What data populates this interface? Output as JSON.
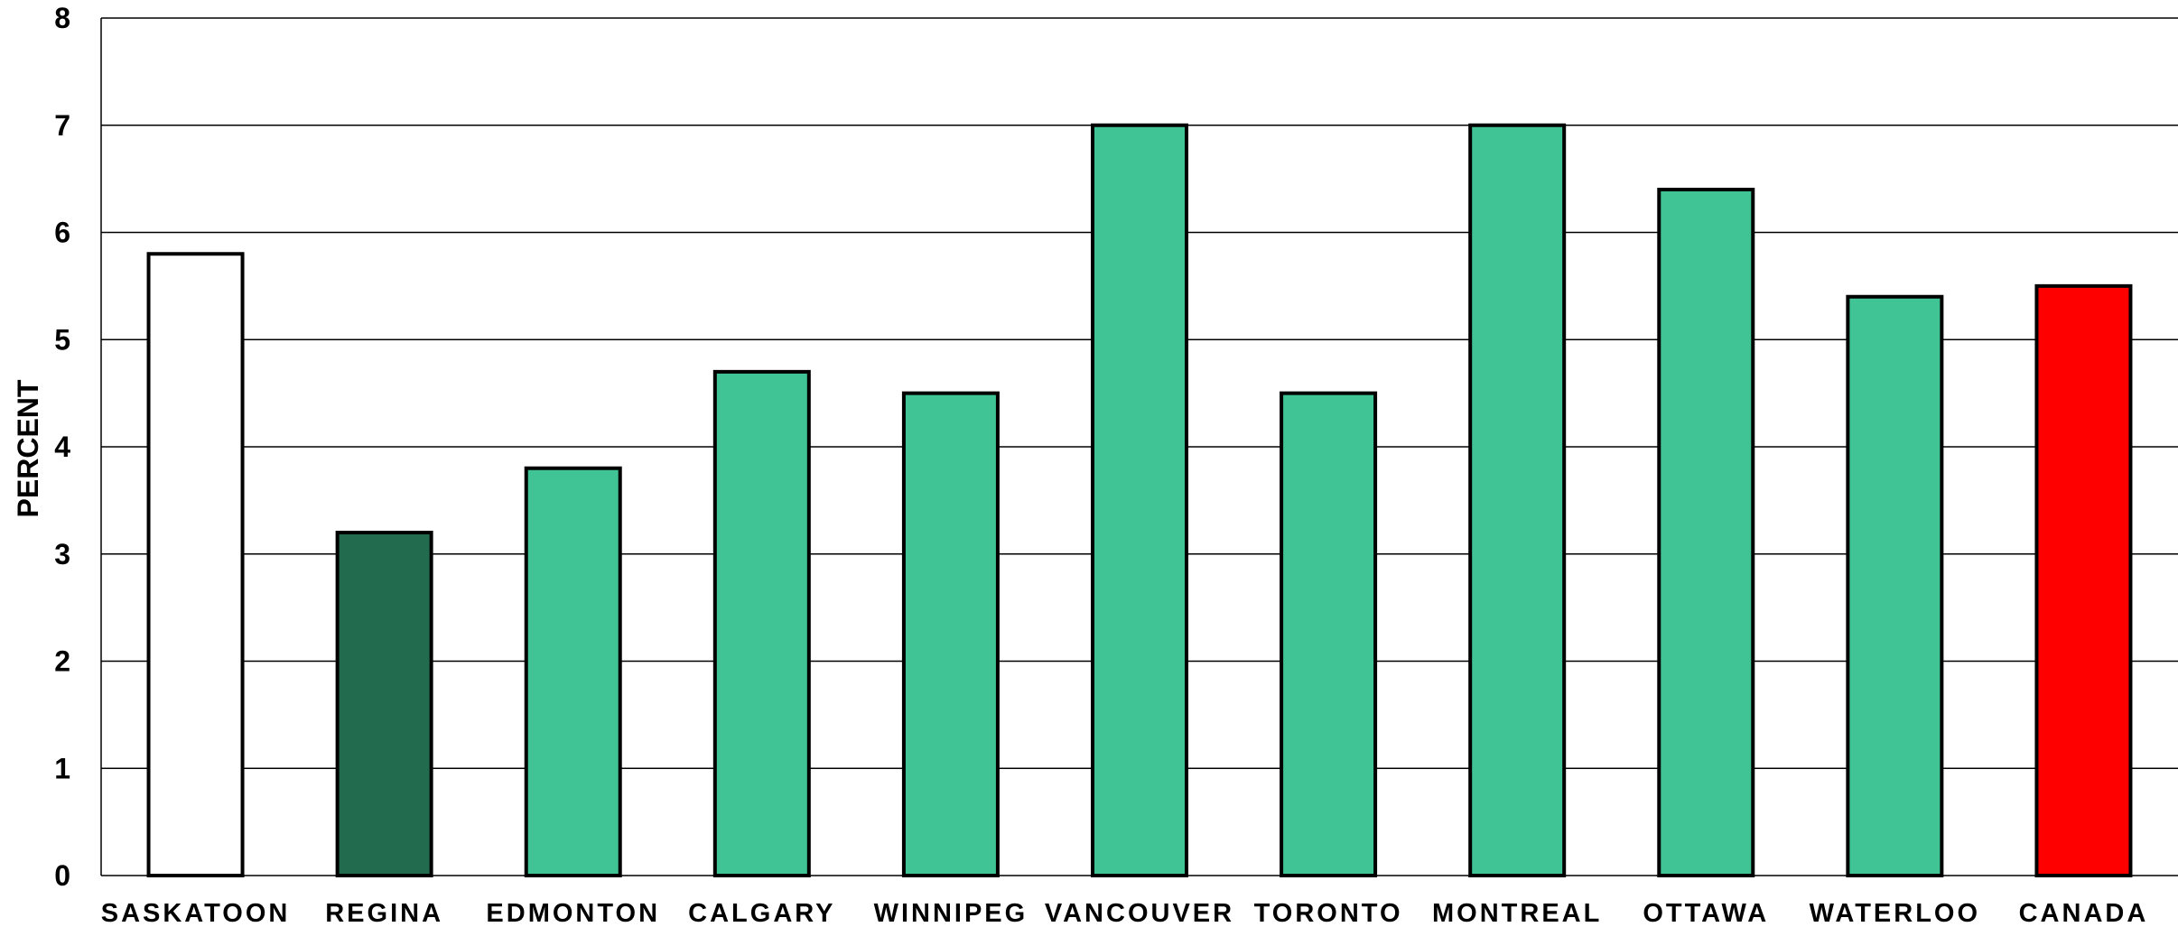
{
  "chart_data": {
    "type": "bar",
    "title": "",
    "xlabel": "",
    "ylabel": "PERCENT",
    "ylim": [
      0,
      8
    ],
    "yticks": [
      0,
      1,
      2,
      3,
      4,
      5,
      6,
      7,
      8
    ],
    "grid": true,
    "legend": "none",
    "categories": [
      "SASKATOON",
      "REGINA",
      "EDMONTON",
      "CALGARY",
      "WINNIPEG",
      "VANCOUVER",
      "TORONTO",
      "MONTREAL",
      "OTTAWA",
      "WATERLOO",
      "CANADA"
    ],
    "values": [
      5.8,
      3.2,
      3.8,
      4.7,
      4.5,
      7.0,
      4.5,
      7.0,
      6.4,
      5.4,
      5.5
    ],
    "colors": [
      "#ffffff",
      "#236b4f",
      "#41c495",
      "#41c495",
      "#41c495",
      "#41c495",
      "#41c495",
      "#41c495",
      "#41c495",
      "#41c495",
      "#ff0000"
    ]
  }
}
